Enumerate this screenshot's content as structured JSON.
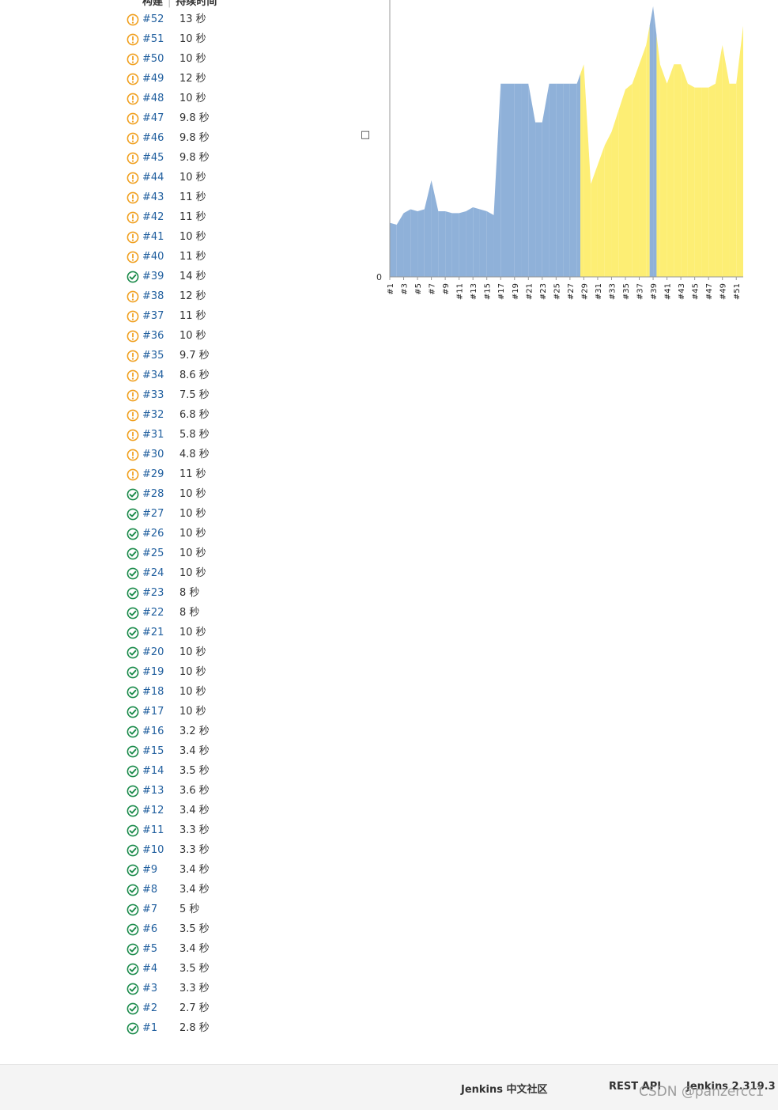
{
  "table": {
    "col_build": "构建",
    "col_duration": "持续时间"
  },
  "colors": {
    "success": "#1a8a4a",
    "unstable": "#f0a020",
    "link": "#1f5e9e",
    "success_area": "#8fb1d9",
    "unstable_area": "#fdee74"
  },
  "builds": [
    {
      "id": "#52",
      "duration": "13 秒",
      "status": "unstable"
    },
    {
      "id": "#51",
      "duration": "10 秒",
      "status": "unstable"
    },
    {
      "id": "#50",
      "duration": "10 秒",
      "status": "unstable"
    },
    {
      "id": "#49",
      "duration": "12 秒",
      "status": "unstable"
    },
    {
      "id": "#48",
      "duration": "10 秒",
      "status": "unstable"
    },
    {
      "id": "#47",
      "duration": "9.8 秒",
      "status": "unstable"
    },
    {
      "id": "#46",
      "duration": "9.8 秒",
      "status": "unstable"
    },
    {
      "id": "#45",
      "duration": "9.8 秒",
      "status": "unstable"
    },
    {
      "id": "#44",
      "duration": "10 秒",
      "status": "unstable"
    },
    {
      "id": "#43",
      "duration": "11 秒",
      "status": "unstable"
    },
    {
      "id": "#42",
      "duration": "11 秒",
      "status": "unstable"
    },
    {
      "id": "#41",
      "duration": "10 秒",
      "status": "unstable"
    },
    {
      "id": "#40",
      "duration": "11 秒",
      "status": "unstable"
    },
    {
      "id": "#39",
      "duration": "14 秒",
      "status": "success"
    },
    {
      "id": "#38",
      "duration": "12 秒",
      "status": "unstable"
    },
    {
      "id": "#37",
      "duration": "11 秒",
      "status": "unstable"
    },
    {
      "id": "#36",
      "duration": "10 秒",
      "status": "unstable"
    },
    {
      "id": "#35",
      "duration": "9.7 秒",
      "status": "unstable"
    },
    {
      "id": "#34",
      "duration": "8.6 秒",
      "status": "unstable"
    },
    {
      "id": "#33",
      "duration": "7.5 秒",
      "status": "unstable"
    },
    {
      "id": "#32",
      "duration": "6.8 秒",
      "status": "unstable"
    },
    {
      "id": "#31",
      "duration": "5.8 秒",
      "status": "unstable"
    },
    {
      "id": "#30",
      "duration": "4.8 秒",
      "status": "unstable"
    },
    {
      "id": "#29",
      "duration": "11 秒",
      "status": "unstable"
    },
    {
      "id": "#28",
      "duration": "10 秒",
      "status": "success"
    },
    {
      "id": "#27",
      "duration": "10 秒",
      "status": "success"
    },
    {
      "id": "#26",
      "duration": "10 秒",
      "status": "success"
    },
    {
      "id": "#25",
      "duration": "10 秒",
      "status": "success"
    },
    {
      "id": "#24",
      "duration": "10 秒",
      "status": "success"
    },
    {
      "id": "#23",
      "duration": "8 秒",
      "status": "success"
    },
    {
      "id": "#22",
      "duration": "8 秒",
      "status": "success"
    },
    {
      "id": "#21",
      "duration": "10 秒",
      "status": "success"
    },
    {
      "id": "#20",
      "duration": "10 秒",
      "status": "success"
    },
    {
      "id": "#19",
      "duration": "10 秒",
      "status": "success"
    },
    {
      "id": "#18",
      "duration": "10 秒",
      "status": "success"
    },
    {
      "id": "#17",
      "duration": "10 秒",
      "status": "success"
    },
    {
      "id": "#16",
      "duration": "3.2 秒",
      "status": "success"
    },
    {
      "id": "#15",
      "duration": "3.4 秒",
      "status": "success"
    },
    {
      "id": "#14",
      "duration": "3.5 秒",
      "status": "success"
    },
    {
      "id": "#13",
      "duration": "3.6 秒",
      "status": "success"
    },
    {
      "id": "#12",
      "duration": "3.4 秒",
      "status": "success"
    },
    {
      "id": "#11",
      "duration": "3.3 秒",
      "status": "success"
    },
    {
      "id": "#10",
      "duration": "3.3 秒",
      "status": "success"
    },
    {
      "id": "#9",
      "duration": "3.4 秒",
      "status": "success"
    },
    {
      "id": "#8",
      "duration": "3.4 秒",
      "status": "success"
    },
    {
      "id": "#7",
      "duration": "5 秒",
      "status": "success"
    },
    {
      "id": "#6",
      "duration": "3.5 秒",
      "status": "success"
    },
    {
      "id": "#5",
      "duration": "3.4 秒",
      "status": "success"
    },
    {
      "id": "#4",
      "duration": "3.5 秒",
      "status": "success"
    },
    {
      "id": "#3",
      "duration": "3.3 秒",
      "status": "success"
    },
    {
      "id": "#2",
      "duration": "2.7 秒",
      "status": "success"
    },
    {
      "id": "#1",
      "duration": "2.8 秒",
      "status": "success"
    }
  ],
  "chart_data": {
    "type": "area",
    "xlabel": "",
    "ylabel": "□",
    "y_tick_labels": [
      "0"
    ],
    "x": [
      "#1",
      "#2",
      "#3",
      "#4",
      "#5",
      "#6",
      "#7",
      "#8",
      "#9",
      "#10",
      "#11",
      "#12",
      "#13",
      "#14",
      "#15",
      "#16",
      "#17",
      "#18",
      "#19",
      "#20",
      "#21",
      "#22",
      "#23",
      "#24",
      "#25",
      "#26",
      "#27",
      "#28",
      "#29",
      "#30",
      "#31",
      "#32",
      "#33",
      "#34",
      "#35",
      "#36",
      "#37",
      "#38",
      "#39",
      "#40",
      "#41",
      "#42",
      "#43",
      "#44",
      "#45",
      "#46",
      "#47",
      "#48",
      "#49",
      "#50",
      "#51",
      "#52"
    ],
    "x_tick_labels": [
      "#1",
      "#3",
      "#5",
      "#7",
      "#9",
      "#11",
      "#13",
      "#15",
      "#17",
      "#19",
      "#21",
      "#23",
      "#25",
      "#27",
      "#29",
      "#31",
      "#33",
      "#35",
      "#37",
      "#39",
      "#41",
      "#43",
      "#45",
      "#47",
      "#49",
      "#51"
    ],
    "values": [
      2.8,
      2.7,
      3.3,
      3.5,
      3.4,
      3.5,
      5,
      3.4,
      3.4,
      3.3,
      3.3,
      3.4,
      3.6,
      3.5,
      3.4,
      3.2,
      10,
      10,
      10,
      10,
      10,
      8,
      8,
      10,
      10,
      10,
      10,
      10,
      11,
      4.8,
      5.8,
      6.8,
      7.5,
      8.6,
      9.7,
      10,
      11,
      12,
      14,
      11,
      10,
      11,
      11,
      10,
      9.8,
      9.8,
      9.8,
      10,
      12,
      10,
      10,
      13
    ],
    "status": [
      "success",
      "success",
      "success",
      "success",
      "success",
      "success",
      "success",
      "success",
      "success",
      "success",
      "success",
      "success",
      "success",
      "success",
      "success",
      "success",
      "success",
      "success",
      "success",
      "success",
      "success",
      "success",
      "success",
      "success",
      "success",
      "success",
      "success",
      "success",
      "unstable",
      "unstable",
      "unstable",
      "unstable",
      "unstable",
      "unstable",
      "unstable",
      "unstable",
      "unstable",
      "unstable",
      "success",
      "unstable",
      "unstable",
      "unstable",
      "unstable",
      "unstable",
      "unstable",
      "unstable",
      "unstable",
      "unstable",
      "unstable",
      "unstable",
      "unstable",
      "unstable"
    ],
    "ylim": [
      0,
      14
    ],
    "grid": false,
    "legend": "none"
  },
  "footer": {
    "community": "Jenkins 中文社区",
    "rest_api": "REST API",
    "version": "Jenkins 2.319.3"
  },
  "watermark": "CSDN @panzercc1"
}
